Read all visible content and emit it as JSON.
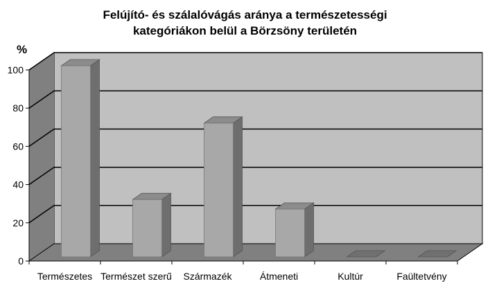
{
  "chart_data": {
    "type": "bar",
    "title_line1": "Felújító- és szálalóvágás aránya a természetességi",
    "title_line2": "kategóriákon belül a Börzsöny területén",
    "ylabel": "%",
    "xlabel": "",
    "ylim": [
      0,
      100
    ],
    "yticks": [
      0,
      20,
      40,
      60,
      80,
      100
    ],
    "categories": [
      "Természetes",
      "Természet szerű",
      "Származék",
      "Átmeneti",
      "Kultúr",
      "Faültetvény"
    ],
    "values": [
      100,
      30,
      70,
      25,
      0,
      0
    ],
    "grid": true,
    "legend": "none",
    "colors": {
      "bar_front": "#a8a8a8",
      "bar_side": "#6e6e6e",
      "bar_top": "#8c8c8c",
      "back_wall": "#c0c0c0",
      "side_wall": "#808080",
      "floor": "#808080",
      "gridline": "#000000"
    }
  }
}
